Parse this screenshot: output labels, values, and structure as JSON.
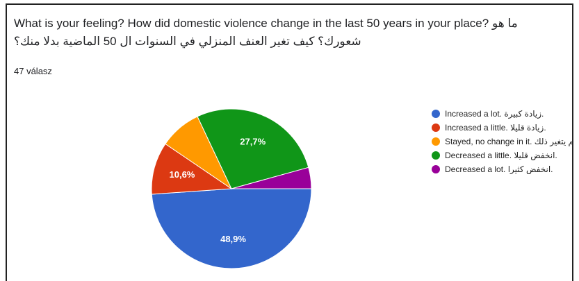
{
  "chart_data": {
    "type": "pie",
    "title": "What is your feeling? How did domestic violence change in the last 50 years in your place?  ما هو شعورك؟ كيف تغير العنف المنزلي في السنوات ال 50 الماضية بدلا منك؟",
    "subtitle": "47 válasz",
    "categories": [
      "Increased a lot. زيادة كبيرة.",
      "Increased a little. زيادة قليلا.",
      "Stayed, no change in it. لم يتغير ذلك",
      "Decreased a little. انخفض قليلا.",
      "Decreased a lot. انخفض كثيرا."
    ],
    "values": [
      48.9,
      10.6,
      8.5,
      27.7,
      4.3
    ],
    "value_labels": [
      "48,9%",
      "10,6%",
      null,
      "27,7%",
      null
    ],
    "colors": [
      "#3366cc",
      "#dc3912",
      "#ff9900",
      "#109618",
      "#990099"
    ],
    "legend": "right"
  }
}
